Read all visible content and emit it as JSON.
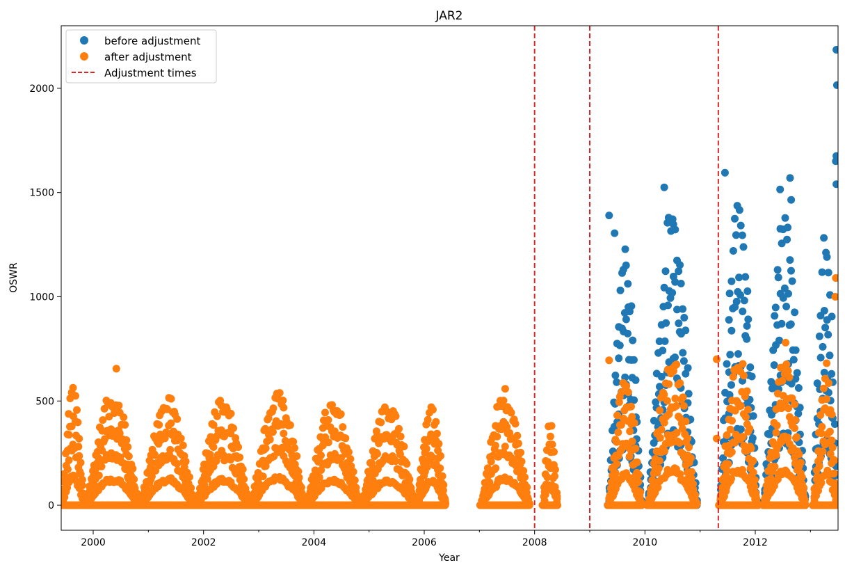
{
  "chart_data": {
    "type": "scatter",
    "title": "JAR2",
    "xlabel": "Year",
    "ylabel": "OSWR",
    "xlim": [
      1999.42,
      2013.5
    ],
    "ylim": [
      -120,
      2300
    ],
    "x_ticks": [
      2000,
      2002,
      2004,
      2006,
      2008,
      2010,
      2012
    ],
    "x_tick_labels": [
      "2000",
      "2002",
      "2004",
      "2006",
      "2008",
      "2010",
      "2012"
    ],
    "y_ticks": [
      0,
      500,
      1000,
      1500,
      2000
    ],
    "y_tick_labels": [
      "0",
      "500",
      "1000",
      "1500",
      "2000"
    ],
    "grid": false,
    "legend_position": "top-left",
    "colors": {
      "before": "#1f77b4",
      "after": "#ff7f0e",
      "adjustment": "#d62728"
    },
    "legend": [
      {
        "label": "before adjustment",
        "kind": "marker",
        "color": "#1f77b4"
      },
      {
        "label": "after adjustment",
        "kind": "marker",
        "color": "#ff7f0e"
      },
      {
        "label": "Adjustment times",
        "kind": "dashed-line",
        "color": "#d62728"
      }
    ],
    "adjustment_times": [
      2008.0,
      2009.0,
      2011.33
    ],
    "series": [
      {
        "name": "before adjustment",
        "color": "#1f77b4",
        "seasons": [
          {
            "start": 2009.33,
            "end": 2009.95,
            "peak": 1300
          },
          {
            "start": 2010.05,
            "end": 2010.95,
            "peak": 1500
          },
          {
            "start": 2011.35,
            "end": 2012.05,
            "peak": 1580
          },
          {
            "start": 2012.15,
            "end": 2012.92,
            "peak": 1500
          },
          {
            "start": 2013.05,
            "end": 2013.5,
            "peak": 1380
          }
        ],
        "outliers": [
          [
            2009.35,
            1390
          ],
          [
            2009.45,
            1305
          ],
          [
            2009.7,
            950
          ],
          [
            2010.35,
            1525
          ],
          [
            2011.45,
            1595
          ],
          [
            2011.85,
            860
          ],
          [
            2012.45,
            1515
          ],
          [
            2012.63,
            1570
          ],
          [
            2012.65,
            1465
          ],
          [
            2013.47,
            2185
          ],
          [
            2013.48,
            2015
          ],
          [
            2013.47,
            1675
          ],
          [
            2013.46,
            1650
          ],
          [
            2013.47,
            1540
          ]
        ]
      },
      {
        "name": "after adjustment",
        "color": "#ff7f0e",
        "seasons": [
          {
            "start": 1999.42,
            "end": 1999.85,
            "peak": 620
          },
          {
            "start": 1999.85,
            "end": 2000.85,
            "peak": 560
          },
          {
            "start": 2000.85,
            "end": 2001.85,
            "peak": 555
          },
          {
            "start": 2001.85,
            "end": 2002.85,
            "peak": 540
          },
          {
            "start": 2002.85,
            "end": 2003.85,
            "peak": 595
          },
          {
            "start": 2003.85,
            "end": 2004.85,
            "peak": 530
          },
          {
            "start": 2004.85,
            "end": 2005.85,
            "peak": 530
          },
          {
            "start": 2005.85,
            "end": 2006.4,
            "peak": 520
          },
          {
            "start": 2007.02,
            "end": 2007.92,
            "peak": 580
          },
          {
            "start": 2008.15,
            "end": 2008.42,
            "peak": 430
          },
          {
            "start": 2009.33,
            "end": 2009.95,
            "peak": 650
          },
          {
            "start": 2010.05,
            "end": 2010.95,
            "peak": 760
          },
          {
            "start": 2011.35,
            "end": 2012.05,
            "peak": 790
          },
          {
            "start": 2012.15,
            "end": 2012.92,
            "peak": 720
          },
          {
            "start": 2013.05,
            "end": 2013.5,
            "peak": 700
          }
        ],
        "outliers": [
          [
            2000.42,
            655
          ],
          [
            2009.35,
            695
          ],
          [
            2011.3,
            700
          ],
          [
            2011.3,
            320
          ],
          [
            2012.55,
            780
          ],
          [
            2013.46,
            1090
          ],
          [
            2013.45,
            1000
          ]
        ]
      }
    ]
  }
}
